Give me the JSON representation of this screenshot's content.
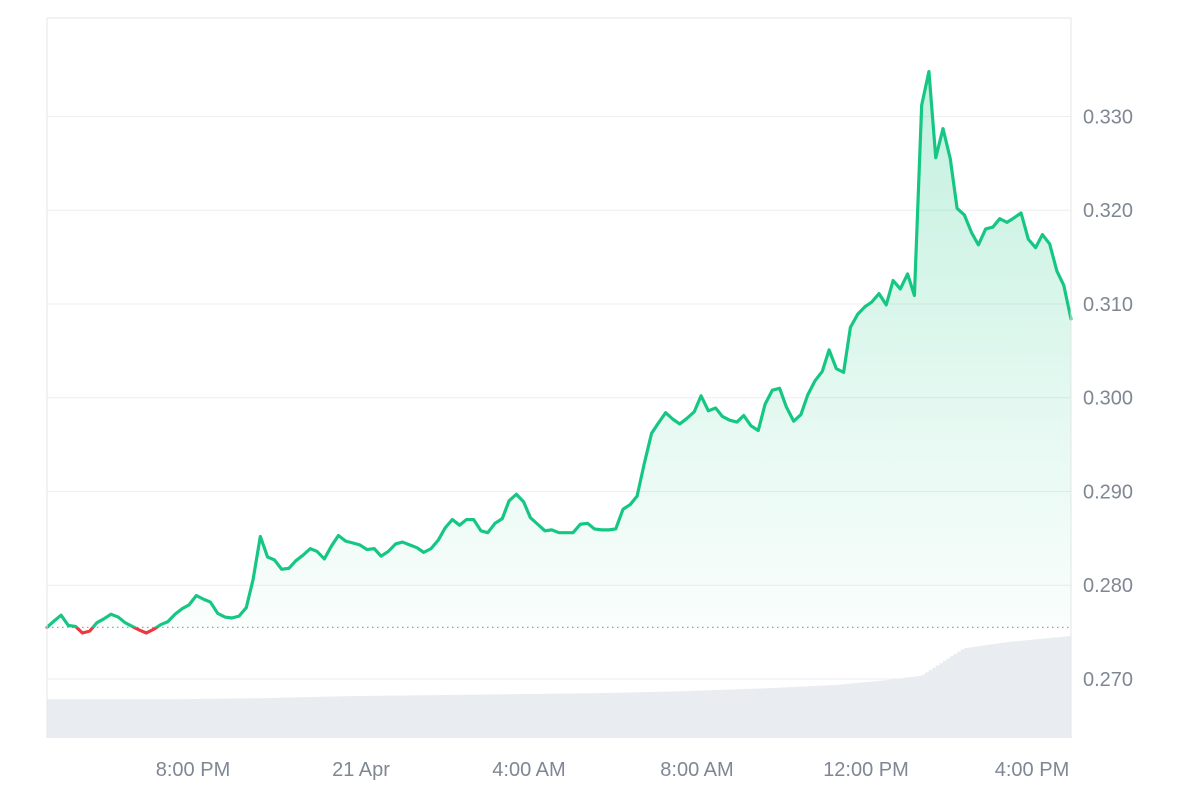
{
  "chart_data": {
    "type": "area",
    "title": "",
    "xlabel": "",
    "ylabel": "",
    "x_tick_labels": [
      "8:00 PM",
      "21 Apr",
      "4:00 AM",
      "8:00 AM",
      "12:00 PM",
      "4:00 PM"
    ],
    "y_tick_labels": [
      "0.330",
      "0.320",
      "0.310",
      "0.300",
      "0.290",
      "0.280",
      "0.270"
    ],
    "y_ticks": [
      0.33,
      0.32,
      0.31,
      0.3,
      0.29,
      0.28,
      0.27
    ],
    "ylim": [
      0.2637,
      0.3405
    ],
    "xlim_hours": [
      0,
      24
    ],
    "reference_value": 0.2755,
    "colors": {
      "up": "#16c784",
      "down": "#ea3943",
      "volume": "#e9edf1",
      "grid": "#eceef1",
      "axis_text": "#7f8794"
    },
    "series": [
      {
        "points": [
          [
            0.0,
            0.2755
          ],
          [
            0.17,
            0.2762
          ],
          [
            0.33,
            0.2768
          ],
          [
            0.5,
            0.2757
          ],
          [
            0.67,
            0.2756
          ],
          [
            0.83,
            0.2749
          ],
          [
            1.0,
            0.2751
          ],
          [
            1.17,
            0.276
          ],
          [
            1.33,
            0.2764
          ],
          [
            1.5,
            0.2769
          ],
          [
            1.67,
            0.2766
          ],
          [
            1.83,
            0.276
          ],
          [
            2.0,
            0.2756
          ],
          [
            2.17,
            0.2752
          ],
          [
            2.33,
            0.2749
          ],
          [
            2.5,
            0.2753
          ],
          [
            2.67,
            0.2758
          ],
          [
            2.83,
            0.2761
          ],
          [
            3.0,
            0.2769
          ],
          [
            3.17,
            0.2775
          ],
          [
            3.33,
            0.2779
          ],
          [
            3.5,
            0.2789
          ],
          [
            3.67,
            0.2785
          ],
          [
            3.83,
            0.2782
          ],
          [
            4.0,
            0.277
          ],
          [
            4.17,
            0.2766
          ],
          [
            4.33,
            0.2765
          ],
          [
            4.5,
            0.2767
          ],
          [
            4.67,
            0.2776
          ],
          [
            4.83,
            0.2806
          ],
          [
            5.0,
            0.2852
          ],
          [
            5.17,
            0.283
          ],
          [
            5.33,
            0.2827
          ],
          [
            5.5,
            0.2817
          ],
          [
            5.67,
            0.2818
          ],
          [
            5.83,
            0.2826
          ],
          [
            6.0,
            0.2832
          ],
          [
            6.17,
            0.2839
          ],
          [
            6.33,
            0.2836
          ],
          [
            6.5,
            0.2828
          ],
          [
            6.67,
            0.2842
          ],
          [
            6.83,
            0.2853
          ],
          [
            7.0,
            0.2847
          ],
          [
            7.17,
            0.2845
          ],
          [
            7.33,
            0.2843
          ],
          [
            7.5,
            0.2838
          ],
          [
            7.67,
            0.2839
          ],
          [
            7.83,
            0.2831
          ],
          [
            8.0,
            0.2836
          ],
          [
            8.17,
            0.2844
          ],
          [
            8.33,
            0.2846
          ],
          [
            8.5,
            0.2843
          ],
          [
            8.67,
            0.284
          ],
          [
            8.83,
            0.2835
          ],
          [
            9.0,
            0.2839
          ],
          [
            9.17,
            0.2848
          ],
          [
            9.33,
            0.2861
          ],
          [
            9.5,
            0.287
          ],
          [
            9.67,
            0.2864
          ],
          [
            9.83,
            0.287
          ],
          [
            10.0,
            0.287
          ],
          [
            10.17,
            0.2858
          ],
          [
            10.33,
            0.2856
          ],
          [
            10.5,
            0.2866
          ],
          [
            10.67,
            0.2871
          ],
          [
            10.83,
            0.289
          ],
          [
            11.0,
            0.2897
          ],
          [
            11.17,
            0.2889
          ],
          [
            11.33,
            0.2872
          ],
          [
            11.5,
            0.2865
          ],
          [
            11.67,
            0.2858
          ],
          [
            11.83,
            0.2859
          ],
          [
            12.0,
            0.2856
          ],
          [
            12.17,
            0.2856
          ],
          [
            12.33,
            0.2856
          ],
          [
            12.5,
            0.2865
          ],
          [
            12.67,
            0.2866
          ],
          [
            12.83,
            0.286
          ],
          [
            13.0,
            0.2859
          ],
          [
            13.17,
            0.2859
          ],
          [
            13.33,
            0.286
          ],
          [
            13.5,
            0.2881
          ],
          [
            13.67,
            0.2886
          ],
          [
            13.83,
            0.2895
          ],
          [
            14.0,
            0.293
          ],
          [
            14.17,
            0.2962
          ],
          [
            14.33,
            0.2973
          ],
          [
            14.5,
            0.2984
          ],
          [
            14.67,
            0.2977
          ],
          [
            14.83,
            0.2972
          ],
          [
            15.0,
            0.2978
          ],
          [
            15.17,
            0.2985
          ],
          [
            15.33,
            0.3002
          ],
          [
            15.5,
            0.2986
          ],
          [
            15.67,
            0.2989
          ],
          [
            15.83,
            0.298
          ],
          [
            16.0,
            0.2976
          ],
          [
            16.17,
            0.2974
          ],
          [
            16.33,
            0.2981
          ],
          [
            16.5,
            0.297
          ],
          [
            16.67,
            0.2965
          ],
          [
            16.83,
            0.2993
          ],
          [
            17.0,
            0.3008
          ],
          [
            17.17,
            0.301
          ],
          [
            17.33,
            0.299
          ],
          [
            17.5,
            0.2975
          ],
          [
            17.67,
            0.2982
          ],
          [
            17.83,
            0.3003
          ],
          [
            18.0,
            0.3018
          ],
          [
            18.17,
            0.3028
          ],
          [
            18.33,
            0.3051
          ],
          [
            18.5,
            0.3031
          ],
          [
            18.67,
            0.3027
          ],
          [
            18.83,
            0.3075
          ],
          [
            19.0,
            0.3089
          ],
          [
            19.17,
            0.3097
          ],
          [
            19.33,
            0.3102
          ],
          [
            19.5,
            0.3111
          ],
          [
            19.67,
            0.3099
          ],
          [
            19.83,
            0.3125
          ],
          [
            20.0,
            0.3116
          ],
          [
            20.17,
            0.3132
          ],
          [
            20.33,
            0.3109
          ],
          [
            20.5,
            0.3312
          ],
          [
            20.67,
            0.3348
          ],
          [
            20.83,
            0.3256
          ],
          [
            21.0,
            0.3287
          ],
          [
            21.17,
            0.3255
          ],
          [
            21.33,
            0.3202
          ],
          [
            21.5,
            0.3195
          ],
          [
            21.67,
            0.3176
          ],
          [
            21.83,
            0.3163
          ],
          [
            22.0,
            0.318
          ],
          [
            22.17,
            0.3182
          ],
          [
            22.33,
            0.3191
          ],
          [
            22.5,
            0.3187
          ],
          [
            22.67,
            0.3192
          ],
          [
            22.83,
            0.3197
          ],
          [
            23.0,
            0.3169
          ],
          [
            23.17,
            0.316
          ],
          [
            23.33,
            0.3174
          ],
          [
            23.5,
            0.3164
          ],
          [
            23.67,
            0.3135
          ],
          [
            23.83,
            0.312
          ],
          [
            24.0,
            0.3084
          ]
        ]
      }
    ],
    "volume_levels": [
      [
        0.0,
        0.38
      ],
      [
        1.0,
        0.38
      ],
      [
        3.0,
        0.38
      ],
      [
        5.0,
        0.39
      ],
      [
        7.0,
        0.41
      ],
      [
        9.0,
        0.42
      ],
      [
        11.0,
        0.43
      ],
      [
        13.0,
        0.44
      ],
      [
        15.0,
        0.46
      ],
      [
        17.0,
        0.49
      ],
      [
        18.5,
        0.52
      ],
      [
        19.5,
        0.56
      ],
      [
        20.5,
        0.61
      ],
      [
        21.5,
        0.88
      ],
      [
        22.5,
        0.94
      ],
      [
        24.0,
        1.0
      ]
    ]
  }
}
